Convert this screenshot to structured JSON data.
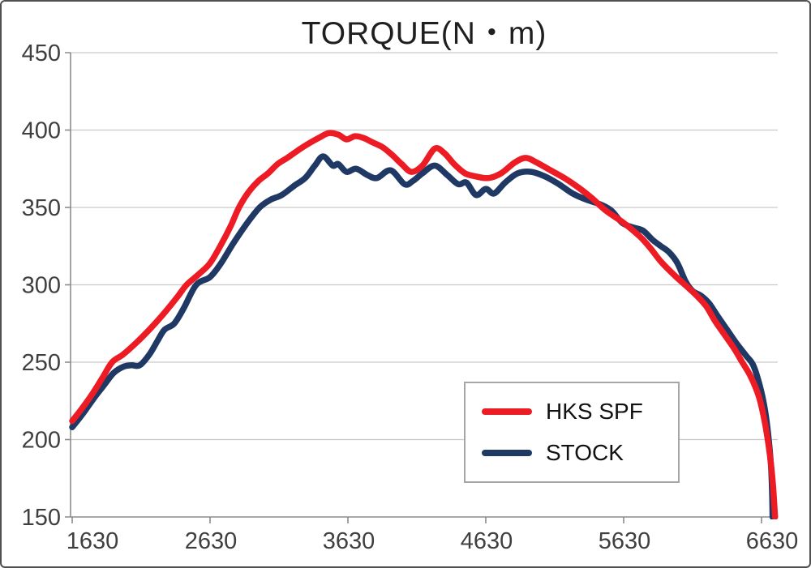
{
  "window": {
    "background": "#ffffff",
    "border_color": "#4f4f4f",
    "grid_color": "#c9c9c9",
    "axis_color": "#8c8c8c",
    "text_color": "#3f3f3f"
  },
  "chart_data": {
    "type": "line",
    "title": "TORQUE(N・m)",
    "xlabel": "",
    "ylabel": "",
    "x_axis": {
      "min": 1630,
      "max": 6747,
      "ticks": [
        1630,
        2630,
        3630,
        4630,
        5630,
        6630
      ]
    },
    "y_axis": {
      "min": 150,
      "max": 450,
      "ticks": [
        450,
        400,
        350,
        300,
        250,
        200,
        150
      ]
    },
    "grid": "horizontal-only",
    "legend": {
      "position": "inside-bottom-right",
      "entries": [
        "HKS SPF",
        "STOCK"
      ]
    },
    "series": [
      {
        "name": "HKS SPF",
        "color": "#ed1b24",
        "points": [
          [
            1630,
            212
          ],
          [
            1700,
            220
          ],
          [
            1780,
            230
          ],
          [
            1850,
            240
          ],
          [
            1920,
            250
          ],
          [
            2000,
            255
          ],
          [
            2100,
            263
          ],
          [
            2200,
            272
          ],
          [
            2300,
            282
          ],
          [
            2400,
            293
          ],
          [
            2460,
            300
          ],
          [
            2550,
            307
          ],
          [
            2630,
            314
          ],
          [
            2710,
            326
          ],
          [
            2780,
            338
          ],
          [
            2840,
            350
          ],
          [
            2910,
            360
          ],
          [
            2980,
            367
          ],
          [
            3050,
            372
          ],
          [
            3120,
            378
          ],
          [
            3190,
            382
          ],
          [
            3270,
            387
          ],
          [
            3340,
            391
          ],
          [
            3420,
            395
          ],
          [
            3490,
            398
          ],
          [
            3560,
            397
          ],
          [
            3620,
            394
          ],
          [
            3680,
            396
          ],
          [
            3740,
            395
          ],
          [
            3810,
            392
          ],
          [
            3880,
            389
          ],
          [
            3950,
            384
          ],
          [
            4020,
            378
          ],
          [
            4090,
            373
          ],
          [
            4170,
            377
          ],
          [
            4260,
            388
          ],
          [
            4330,
            385
          ],
          [
            4400,
            378
          ],
          [
            4480,
            372
          ],
          [
            4560,
            370
          ],
          [
            4650,
            369
          ],
          [
            4740,
            372
          ],
          [
            4840,
            379
          ],
          [
            4920,
            382
          ],
          [
            5000,
            379
          ],
          [
            5100,
            374
          ],
          [
            5200,
            369
          ],
          [
            5300,
            363
          ],
          [
            5400,
            356
          ],
          [
            5500,
            348
          ],
          [
            5630,
            340
          ],
          [
            5750,
            331
          ],
          [
            5830,
            323
          ],
          [
            5900,
            315
          ],
          [
            6000,
            306
          ],
          [
            6100,
            298
          ],
          [
            6160,
            293
          ],
          [
            6230,
            286
          ],
          [
            6290,
            277
          ],
          [
            6360,
            268
          ],
          [
            6430,
            259
          ],
          [
            6490,
            250
          ],
          [
            6550,
            241
          ],
          [
            6610,
            228
          ],
          [
            6650,
            213
          ],
          [
            6680,
            197
          ],
          [
            6700,
            183
          ],
          [
            6715,
            168
          ],
          [
            6728,
            150
          ]
        ]
      },
      {
        "name": "STOCK",
        "color": "#1f3864",
        "points": [
          [
            1630,
            208
          ],
          [
            1710,
            217
          ],
          [
            1790,
            227
          ],
          [
            1860,
            235
          ],
          [
            1930,
            243
          ],
          [
            2000,
            247
          ],
          [
            2060,
            248
          ],
          [
            2120,
            248
          ],
          [
            2190,
            255
          ],
          [
            2250,
            264
          ],
          [
            2300,
            271
          ],
          [
            2370,
            275
          ],
          [
            2440,
            285
          ],
          [
            2530,
            300
          ],
          [
            2630,
            305
          ],
          [
            2710,
            314
          ],
          [
            2800,
            327
          ],
          [
            2900,
            340
          ],
          [
            2990,
            350
          ],
          [
            3070,
            355
          ],
          [
            3150,
            358
          ],
          [
            3240,
            364
          ],
          [
            3320,
            369
          ],
          [
            3390,
            377
          ],
          [
            3450,
            383
          ],
          [
            3520,
            377
          ],
          [
            3560,
            378
          ],
          [
            3620,
            373
          ],
          [
            3690,
            375
          ],
          [
            3770,
            371
          ],
          [
            3840,
            369
          ],
          [
            3940,
            374
          ],
          [
            4040,
            365
          ],
          [
            4100,
            367
          ],
          [
            4170,
            372
          ],
          [
            4260,
            377
          ],
          [
            4350,
            371
          ],
          [
            4430,
            365
          ],
          [
            4490,
            366
          ],
          [
            4560,
            358
          ],
          [
            4630,
            362
          ],
          [
            4690,
            359
          ],
          [
            4770,
            366
          ],
          [
            4860,
            372
          ],
          [
            4960,
            373
          ],
          [
            5060,
            370
          ],
          [
            5160,
            365
          ],
          [
            5260,
            359
          ],
          [
            5360,
            355
          ],
          [
            5460,
            352
          ],
          [
            5540,
            348
          ],
          [
            5620,
            340
          ],
          [
            5700,
            337
          ],
          [
            5770,
            335
          ],
          [
            5840,
            329
          ],
          [
            5900,
            325
          ],
          [
            5960,
            321
          ],
          [
            6020,
            314
          ],
          [
            6080,
            302
          ],
          [
            6130,
            296
          ],
          [
            6190,
            293
          ],
          [
            6250,
            288
          ],
          [
            6310,
            280
          ],
          [
            6380,
            271
          ],
          [
            6450,
            262
          ],
          [
            6520,
            254
          ],
          [
            6570,
            248
          ],
          [
            6620,
            234
          ],
          [
            6655,
            219
          ],
          [
            6680,
            202
          ],
          [
            6698,
            184
          ],
          [
            6706,
            168
          ],
          [
            6710,
            150
          ]
        ]
      }
    ]
  }
}
